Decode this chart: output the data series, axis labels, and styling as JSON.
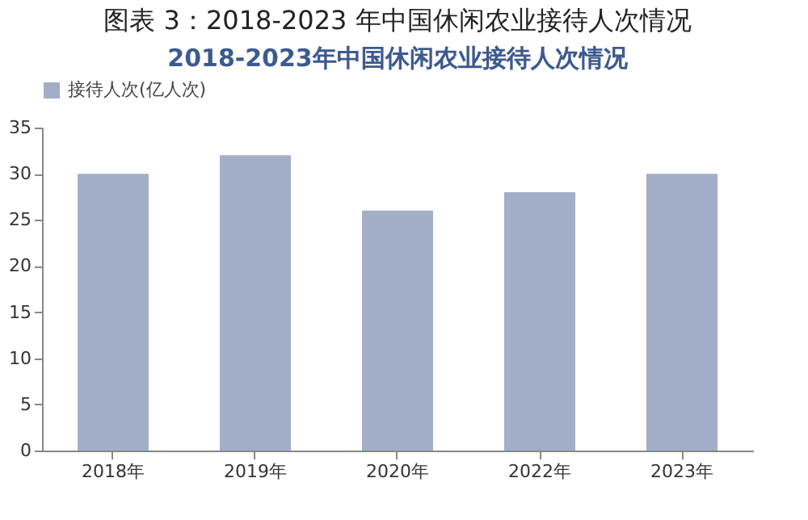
{
  "chart_data": {
    "type": "bar",
    "title": "图表 3：2018-2023 年中国休闲农业接待人次情况",
    "subtitle": "2018-2023年中国休闲农业接待人次情况",
    "categories": [
      "2018年",
      "2019年",
      "2020年",
      "2022年",
      "2023年"
    ],
    "series": [
      {
        "name": "接待人次(亿人次)",
        "color": "#a3aec8",
        "values": [
          30,
          32,
          26,
          28,
          30
        ]
      }
    ],
    "ylim": [
      0,
      35
    ],
    "yticks": [
      0,
      5,
      10,
      15,
      20,
      25,
      30,
      35
    ],
    "grid": false,
    "legend": "top"
  }
}
